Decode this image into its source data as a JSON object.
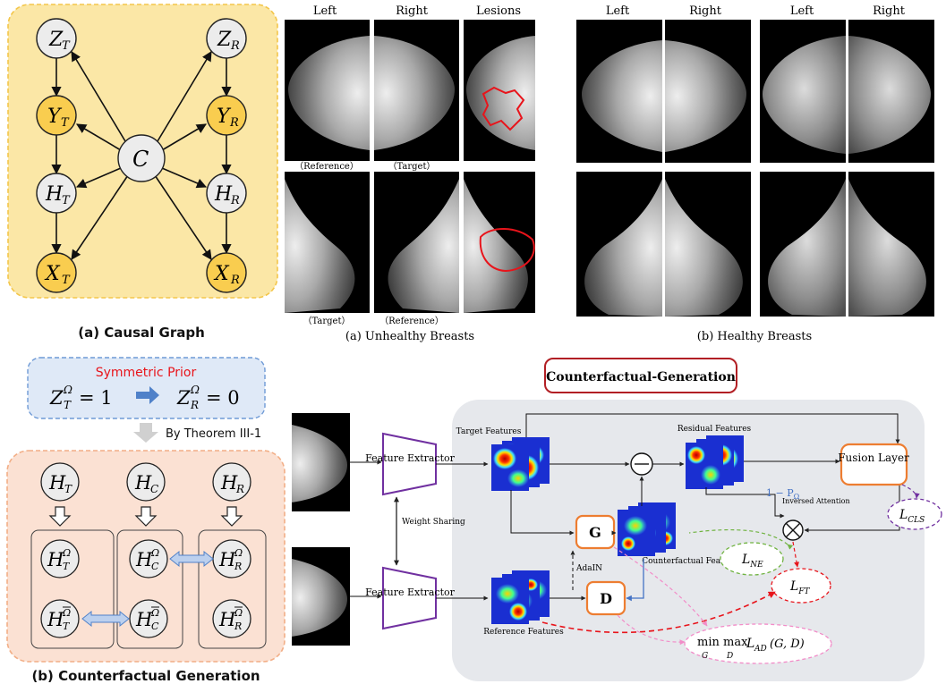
{
  "causal_graph": {
    "caption": "(a) Causal Graph",
    "nodes": {
      "zt": {
        "base": "Z",
        "sub": "T"
      },
      "zr": {
        "base": "Z",
        "sub": "R"
      },
      "yt": {
        "base": "Y",
        "sub": "T"
      },
      "yr": {
        "base": "Y",
        "sub": "R"
      },
      "c": {
        "base": "C",
        "sub": ""
      },
      "ht": {
        "base": "H",
        "sub": "T"
      },
      "hr": {
        "base": "H",
        "sub": "R"
      },
      "xt": {
        "base": "X",
        "sub": "T"
      },
      "xr": {
        "base": "X",
        "sub": "R"
      }
    },
    "colors": {
      "highlight": "#f9cd4f",
      "plain": "#ececec",
      "panel": "#fbe7a6",
      "panel_border": "#f3c64a"
    }
  },
  "mammograms": {
    "unhealthy_caption": "(a) Unhealthy Breasts",
    "healthy_caption": "(b) Healthy Breasts",
    "col_left": "Left",
    "col_right": "Right",
    "col_lesions": "Lesions",
    "label_reference": "（Reference）",
    "label_target": "（Target）",
    "lesion_color": "#e8141b"
  },
  "counterfactual_panel": {
    "caption": "(b) Counterfactual Generation",
    "symmetric_prior": "Symmetric Prior",
    "eq_left": {
      "base": "Z",
      "sup": "Ω",
      "sub": "T",
      "value": "= 1"
    },
    "eq_right": {
      "base": "Z",
      "sup": "Ω",
      "sub": "R",
      "value": "= 0"
    },
    "theorem": "By Theorem III-1",
    "top_nodes": [
      {
        "base": "H",
        "sub": "T"
      },
      {
        "base": "H",
        "sub": "C"
      },
      {
        "base": "H",
        "sub": "R"
      }
    ],
    "omega_nodes": [
      {
        "base": "H",
        "sup": "Ω",
        "sub": "T"
      },
      {
        "base": "H",
        "sup": "Ω",
        "sub": "C"
      },
      {
        "base": "H",
        "sup": "Ω",
        "sub": "R"
      }
    ],
    "omega_bar_nodes": [
      {
        "base": "H",
        "sup": "Ω",
        "sub": "T"
      },
      {
        "base": "H",
        "sup": "Ω",
        "sub": "C"
      },
      {
        "base": "H",
        "sup": "Ω",
        "sub": "R"
      }
    ],
    "colors": {
      "prior_bg": "#dfe9f7",
      "prior_border": "#6f9ad6",
      "panel_bg": "#fbe1d3",
      "panel_border": "#f2ae86",
      "prior_text": "#e8141b",
      "arrow": "#4f81c9"
    }
  },
  "pipeline": {
    "title": "Counterfactual-Generation",
    "feature_extractor": "Feature Extractor",
    "weight_sharing": "Weight Sharing",
    "target_features": "Target Features",
    "reference_features": "Reference Features",
    "residual_features": "Residual Features",
    "counterfactual_features": "Counterfactual Features",
    "g_label": "G",
    "d_label": "D",
    "adain": "AdaIN",
    "fusion_layer": "Fusion Layer",
    "inversed_attention": "Inversed Attention",
    "one_minus_p": "1 − P",
    "one_minus_p_sub": "Ω",
    "loss_ne": {
      "base": "L",
      "sub": "NE"
    },
    "loss_ft": {
      "base": "L",
      "sub": "FT"
    },
    "loss_cls": {
      "base": "L",
      "sub": "CLS"
    },
    "loss_ad_prefix": "min max",
    "loss_ad_min_sub": "G",
    "loss_ad_max_sub": "D",
    "loss_ad": {
      "base": "L",
      "sub": "AD",
      "args": "(G, D)"
    },
    "colors": {
      "title_border": "#b21f24",
      "extractor": "#7030a0",
      "orange": "#ed7d31",
      "panel_bg": "#e6e8ec",
      "blue_line": "#4472c4",
      "ne": "#70b341",
      "ft": "#e8141b",
      "cls": "#7030a0",
      "ad": "#f28cc8"
    }
  }
}
